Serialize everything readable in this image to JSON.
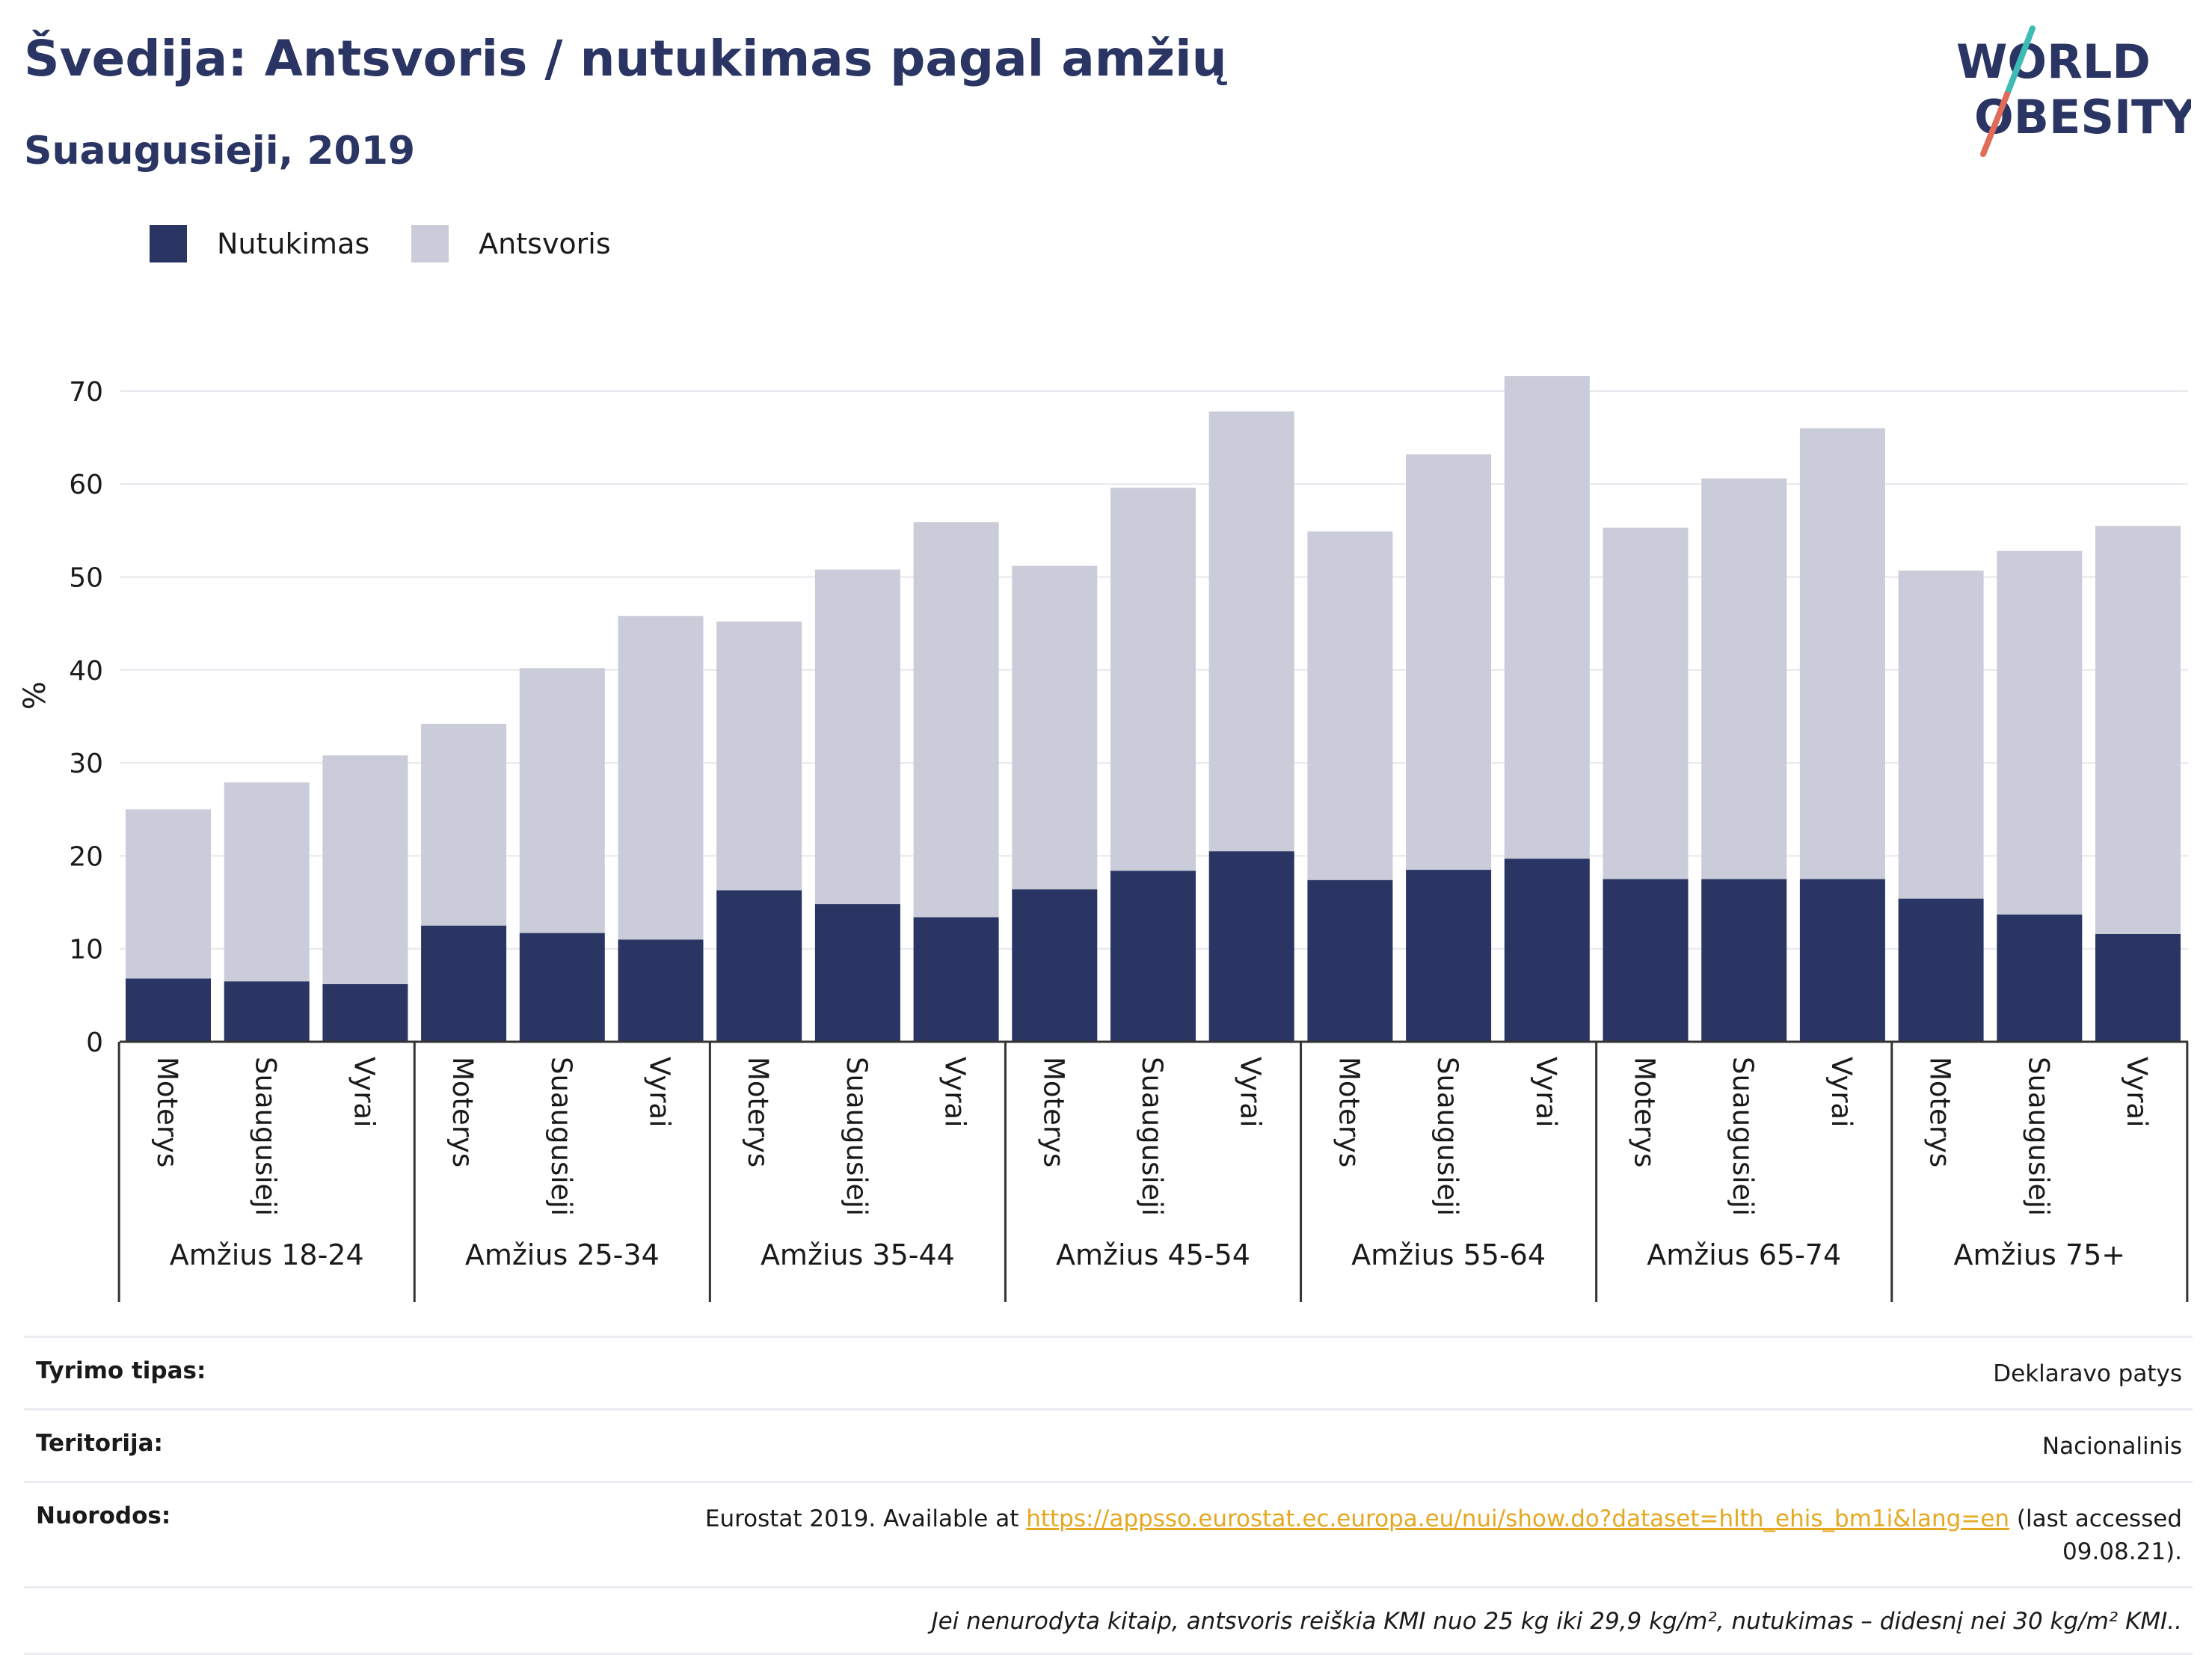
{
  "header": {
    "title": "Švedija: Antsvoris / nutukimas pagal amžių",
    "subtitle": "Suaugusieji, 2019",
    "logo": {
      "line1": "WORLD",
      "line2": "OBESITY"
    }
  },
  "colors": {
    "obesity": "#2a3563",
    "overweight": "#cacdd9",
    "accent_teal": "#3cbcb4",
    "accent_coral": "#e06c5a",
    "link": "#e5a821"
  },
  "chart_data": {
    "type": "bar",
    "stacked": true,
    "ylabel": "%",
    "ylim": [
      0,
      75
    ],
    "yticks": [
      0,
      10,
      20,
      30,
      40,
      50,
      60,
      70
    ],
    "grid": true,
    "legend_position": "top-left",
    "series": [
      {
        "name": "Nutukimas",
        "color": "#2a3563",
        "values": [
          6.8,
          6.5,
          6.2,
          12.5,
          11.7,
          11.0,
          16.3,
          14.8,
          13.4,
          16.4,
          18.4,
          20.5,
          17.4,
          18.5,
          19.7,
          17.5,
          17.5,
          17.5,
          15.4,
          13.7,
          11.6
        ]
      },
      {
        "name": "Antsvoris",
        "color": "#cacdd9",
        "values": [
          18.2,
          21.4,
          24.6,
          21.7,
          28.5,
          34.8,
          28.9,
          36.0,
          42.5,
          34.8,
          41.2,
          47.3,
          37.5,
          44.7,
          51.9,
          37.8,
          43.1,
          48.5,
          35.3,
          39.1,
          43.9
        ]
      }
    ],
    "totals": [
      25.0,
      27.9,
      30.8,
      34.2,
      40.2,
      45.8,
      45.2,
      50.8,
      55.9,
      51.2,
      59.6,
      67.8,
      54.9,
      63.2,
      71.6,
      55.3,
      60.6,
      66.0,
      50.7,
      52.8,
      55.5
    ],
    "groups": [
      {
        "label": "Amžius 18-24",
        "categories": [
          "Moterys",
          "Suaugusieji",
          "Vyrai"
        ]
      },
      {
        "label": "Amžius 25-34",
        "categories": [
          "Moterys",
          "Suaugusieji",
          "Vyrai"
        ]
      },
      {
        "label": "Amžius 35-44",
        "categories": [
          "Moterys",
          "Suaugusieji",
          "Vyrai"
        ]
      },
      {
        "label": "Amžius 45-54",
        "categories": [
          "Moterys",
          "Suaugusieji",
          "Vyrai"
        ]
      },
      {
        "label": "Amžius 55-64",
        "categories": [
          "Moterys",
          "Suaugusieji",
          "Vyrai"
        ]
      },
      {
        "label": "Amžius 65-74",
        "categories": [
          "Moterys",
          "Suaugusieji",
          "Vyrai"
        ]
      },
      {
        "label": "Amžius 75+",
        "categories": [
          "Moterys",
          "Suaugusieji",
          "Vyrai"
        ]
      }
    ]
  },
  "footer": {
    "survey_label": "Tyrimo tipas:",
    "survey_value": "Deklaravo patys",
    "territory_label": "Teritorija:",
    "territory_value": "Nacionalinis",
    "refs_label": "Nuorodos:",
    "refs_prefix": "Eurostat 2019. Available at ",
    "refs_link": "https://appsso.eurostat.ec.europa.eu/nui/show.do?dataset=hlth_ehis_bm1i&lang=en",
    "refs_suffix": " (last accessed 09.08.21).",
    "note": "Jei nenurodyta kitaip, antsvoris reiškia KMI nuo 25 kg iki 29,9 kg/m², nutukimas – didesnį nei 30 kg/m² KMI.."
  }
}
